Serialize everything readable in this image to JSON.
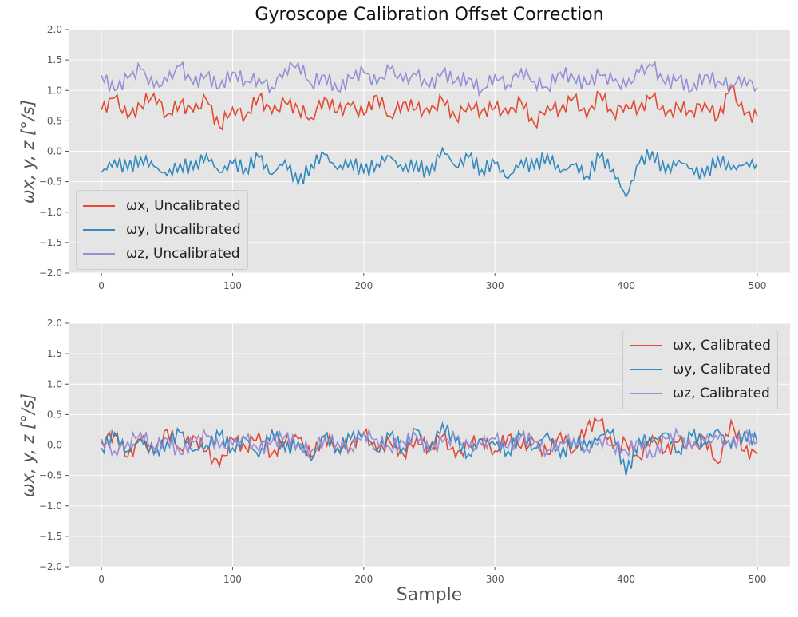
{
  "figure": {
    "title": "Gyroscope Calibration Offset Correction",
    "xlabel": "Sample",
    "ylabel": "ωx, y, z [°/s]"
  },
  "colors": {
    "x": "#E24A33",
    "y": "#348ABD",
    "z": "#988ED5",
    "axes_bg": "#E5E5E5",
    "grid": "#FFFFFF",
    "tick_text": "#555555"
  },
  "chart_data": [
    {
      "type": "line",
      "title": "Gyroscope Calibration Offset Correction",
      "xlabel": "",
      "ylabel": "ωx, y, z [°/s]",
      "xlim": [
        -25,
        525
      ],
      "ylim": [
        -2.0,
        2.0
      ],
      "xticks": [
        0,
        100,
        200,
        300,
        400,
        500
      ],
      "yticks": [
        -2.0,
        -1.5,
        -1.0,
        -0.5,
        0.0,
        0.5,
        1.0,
        1.5,
        2.0
      ],
      "grid": true,
      "legend_position": "center left",
      "x_step": 10,
      "x": [
        0,
        10,
        20,
        30,
        40,
        50,
        60,
        70,
        80,
        90,
        100,
        110,
        120,
        130,
        140,
        150,
        160,
        170,
        180,
        190,
        200,
        210,
        220,
        230,
        240,
        250,
        260,
        270,
        280,
        290,
        300,
        310,
        320,
        330,
        340,
        350,
        360,
        370,
        380,
        390,
        400,
        410,
        420,
        430,
        440,
        450,
        460,
        470,
        480,
        490,
        500
      ],
      "series": [
        {
          "name": "ωx, Uncalibrated",
          "color": "#E24A33",
          "values": [
            0.68,
            0.88,
            0.55,
            0.75,
            0.95,
            0.6,
            0.78,
            0.65,
            0.85,
            0.4,
            0.72,
            0.58,
            0.9,
            0.62,
            0.8,
            0.7,
            0.55,
            0.88,
            0.65,
            0.75,
            0.6,
            0.92,
            0.58,
            0.8,
            0.7,
            0.62,
            0.85,
            0.55,
            0.78,
            0.66,
            0.72,
            0.6,
            0.82,
            0.45,
            0.75,
            0.68,
            0.88,
            0.55,
            0.95,
            0.62,
            0.78,
            0.7,
            0.9,
            0.58,
            0.72,
            0.66,
            0.8,
            0.55,
            1.05,
            0.6,
            0.58
          ]
        },
        {
          "name": "ωy, Uncalibrated",
          "color": "#348ABD",
          "values": [
            -0.35,
            -0.15,
            -0.3,
            -0.1,
            -0.25,
            -0.4,
            -0.2,
            -0.3,
            -0.05,
            -0.35,
            -0.2,
            -0.28,
            -0.1,
            -0.38,
            -0.15,
            -0.55,
            -0.22,
            -0.05,
            -0.3,
            -0.15,
            -0.35,
            -0.2,
            -0.08,
            -0.32,
            -0.18,
            -0.4,
            0.05,
            -0.25,
            -0.1,
            -0.3,
            -0.2,
            -0.45,
            -0.15,
            -0.28,
            -0.05,
            -0.35,
            -0.22,
            -0.4,
            -0.1,
            -0.3,
            -0.75,
            -0.2,
            0.0,
            -0.35,
            -0.15,
            -0.28,
            -0.42,
            -0.1,
            -0.3,
            -0.22,
            -0.2
          ]
        },
        {
          "name": "ωz, Uncalibrated",
          "color": "#988ED5",
          "values": [
            1.25,
            1.0,
            1.2,
            1.35,
            1.05,
            1.15,
            1.4,
            1.1,
            1.25,
            1.05,
            1.3,
            1.15,
            1.2,
            1.05,
            1.35,
            1.45,
            1.1,
            1.25,
            1.0,
            1.2,
            1.3,
            1.1,
            1.35,
            1.15,
            1.25,
            1.05,
            1.3,
            1.15,
            1.2,
            1.0,
            1.25,
            1.1,
            1.35,
            1.15,
            1.05,
            1.3,
            1.2,
            1.1,
            1.25,
            1.15,
            1.05,
            1.3,
            1.4,
            1.1,
            1.2,
            1.0,
            1.25,
            1.15,
            1.1,
            1.2,
            1.05
          ]
        }
      ]
    },
    {
      "type": "line",
      "title": "",
      "xlabel": "Sample",
      "ylabel": "ωx, y, z [°/s]",
      "xlim": [
        -25,
        525
      ],
      "ylim": [
        -2.0,
        2.0
      ],
      "xticks": [
        0,
        100,
        200,
        300,
        400,
        500
      ],
      "yticks": [
        -2.0,
        -1.5,
        -1.0,
        -0.5,
        0.0,
        0.5,
        1.0,
        1.5,
        2.0
      ],
      "grid": true,
      "legend_position": "upper right",
      "x_step": 10,
      "x": [
        0,
        10,
        20,
        30,
        40,
        50,
        60,
        70,
        80,
        90,
        100,
        110,
        120,
        130,
        140,
        150,
        160,
        170,
        180,
        190,
        200,
        210,
        220,
        230,
        240,
        250,
        260,
        270,
        280,
        290,
        300,
        310,
        320,
        330,
        340,
        350,
        360,
        370,
        380,
        390,
        400,
        410,
        420,
        430,
        440,
        450,
        460,
        470,
        480,
        490,
        500
      ],
      "series": [
        {
          "name": "ωx, Calibrated",
          "color": "#E24A33",
          "values": [
            0.05,
            0.2,
            -0.2,
            0.1,
            -0.15,
            0.25,
            -0.05,
            0.15,
            -0.1,
            -0.35,
            0.1,
            -0.05,
            0.2,
            -0.15,
            0.05,
            0.1,
            -0.2,
            0.15,
            -0.05,
            0.0,
            0.2,
            -0.1,
            0.05,
            -0.15,
            0.1,
            -0.05,
            0.15,
            -0.2,
            0.0,
            0.1,
            -0.1,
            0.15,
            -0.05,
            0.05,
            -0.15,
            0.2,
            -0.1,
            0.3,
            0.4,
            -0.05,
            0.05,
            -0.2,
            0.15,
            -0.1,
            0.05,
            -0.05,
            0.1,
            -0.3,
            0.4,
            -0.1,
            -0.15
          ]
        },
        {
          "name": "ωy, Calibrated",
          "color": "#348ABD",
          "values": [
            -0.05,
            0.15,
            -0.1,
            0.1,
            -0.15,
            0.05,
            0.2,
            -0.1,
            0.0,
            0.15,
            -0.05,
            0.1,
            -0.2,
            0.25,
            -0.1,
            0.05,
            -0.25,
            0.15,
            -0.05,
            0.1,
            0.2,
            -0.1,
            0.15,
            -0.05,
            0.25,
            -0.1,
            0.35,
            0.05,
            -0.15,
            0.1,
            0.0,
            -0.1,
            0.15,
            -0.05,
            0.2,
            -0.2,
            0.1,
            -0.05,
            0.15,
            0.25,
            -0.5,
            0.1,
            0.05,
            0.2,
            -0.1,
            0.15,
            0.05,
            0.25,
            -0.05,
            0.2,
            0.05
          ]
        },
        {
          "name": "ωz, Calibrated",
          "color": "#988ED5",
          "values": [
            0.1,
            -0.1,
            0.05,
            0.2,
            -0.05,
            0.1,
            -0.15,
            0.05,
            0.15,
            -0.05,
            0.0,
            0.1,
            -0.1,
            0.05,
            0.15,
            0.0,
            -0.1,
            0.1,
            0.05,
            -0.05,
            0.2,
            0.1,
            -0.05,
            0.05,
            0.15,
            -0.1,
            0.05,
            0.1,
            -0.05,
            0.0,
            0.1,
            -0.05,
            0.15,
            0.05,
            -0.1,
            0.05,
            0.1,
            -0.05,
            0.1,
            0.0,
            -0.1,
            0.05,
            -0.2,
            0.1,
            0.15,
            -0.05,
            0.05,
            0.1,
            0.0,
            0.15,
            0.05
          ]
        }
      ]
    }
  ]
}
